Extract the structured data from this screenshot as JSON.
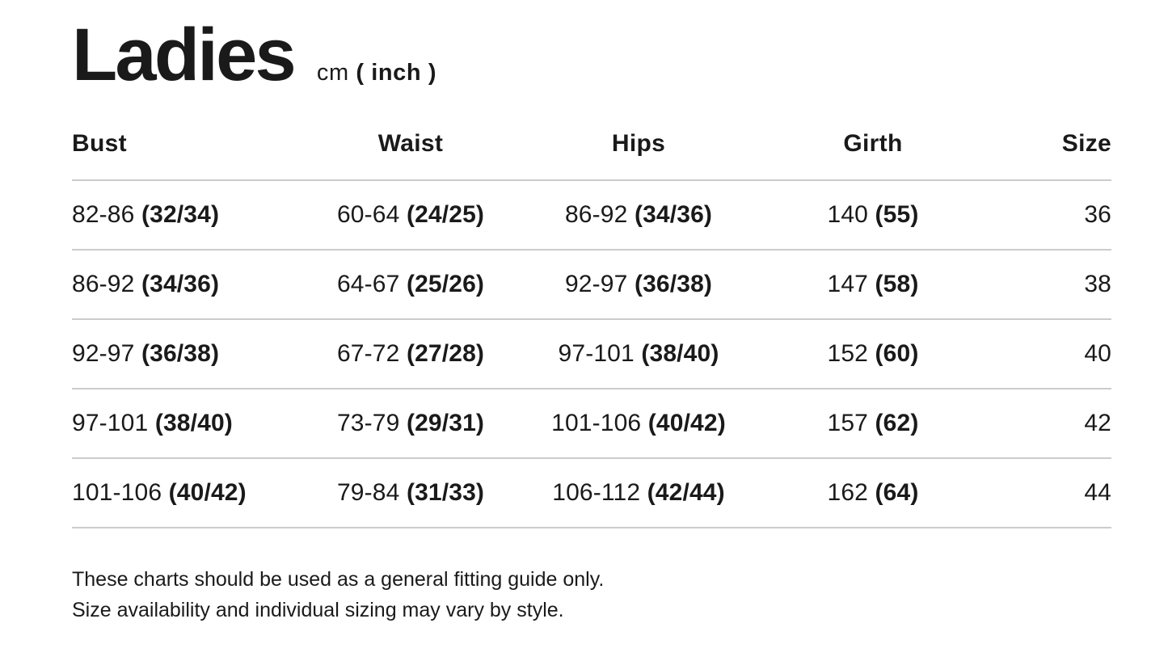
{
  "title": "Ladies",
  "units": {
    "primary": "cm",
    "secondary": "( inch )"
  },
  "table": {
    "columns": [
      "Bust",
      "Waist",
      "Hips",
      "Girth",
      "Size"
    ],
    "rows": [
      {
        "bust": [
          "82-86",
          "(32/34)"
        ],
        "waist": [
          "60-64",
          "(24/25)"
        ],
        "hips": [
          "86-92",
          "(34/36)"
        ],
        "girth": [
          "140",
          "(55)"
        ],
        "size": "36"
      },
      {
        "bust": [
          "86-92",
          "(34/36)"
        ],
        "waist": [
          "64-67",
          "(25/26)"
        ],
        "hips": [
          "92-97",
          "(36/38)"
        ],
        "girth": [
          "147",
          "(58)"
        ],
        "size": "38"
      },
      {
        "bust": [
          "92-97",
          "(36/38)"
        ],
        "waist": [
          "67-72",
          "(27/28)"
        ],
        "hips": [
          "97-101",
          "(38/40)"
        ],
        "girth": [
          "152",
          "(60)"
        ],
        "size": "40"
      },
      {
        "bust": [
          "97-101",
          "(38/40)"
        ],
        "waist": [
          "73-79",
          "(29/31)"
        ],
        "hips": [
          "101-106",
          "(40/42)"
        ],
        "girth": [
          "157",
          "(62)"
        ],
        "size": "42"
      },
      {
        "bust": [
          "101-106",
          "(40/42)"
        ],
        "waist": [
          "79-84",
          "(31/33)"
        ],
        "hips": [
          "106-112",
          "(42/44)"
        ],
        "girth": [
          "162",
          "(64)"
        ],
        "size": "44"
      }
    ]
  },
  "footer": {
    "line1": "These charts should be used as a general fitting guide only.",
    "line2": "Size availability and individual sizing may vary by style."
  },
  "colors": {
    "text": "#1a1a1a",
    "divider": "#cccccc",
    "background": "#ffffff"
  }
}
